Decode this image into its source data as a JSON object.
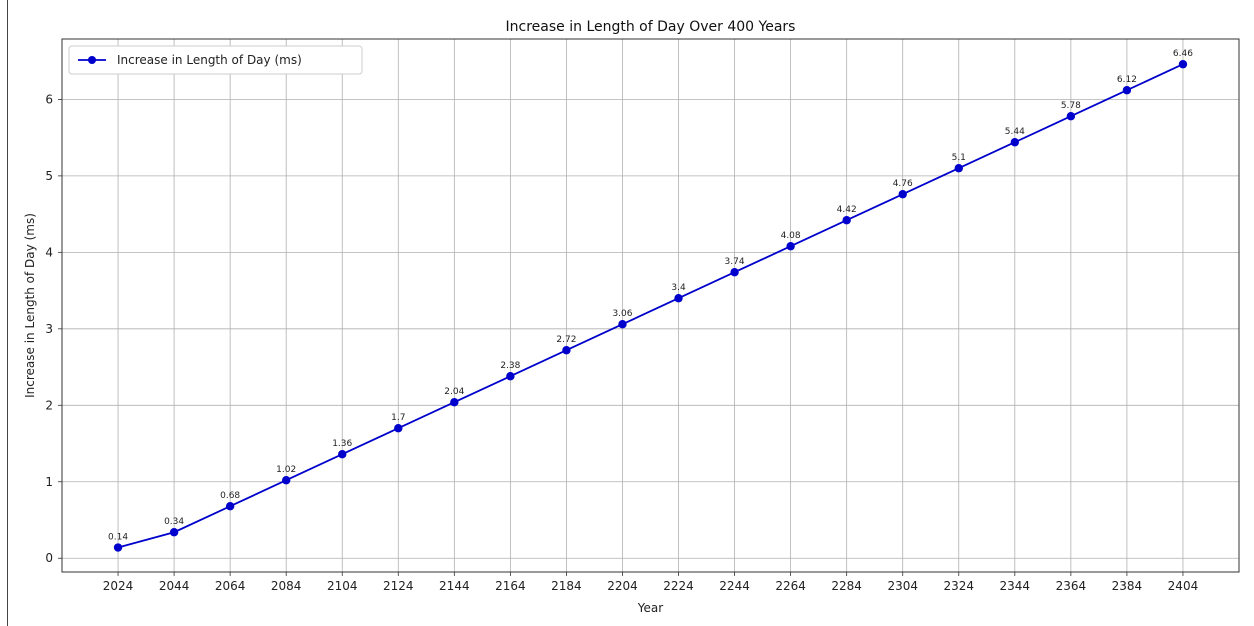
{
  "chart_data": {
    "type": "line",
    "title": "Increase in Length of Day Over 400 Years",
    "xlabel": "Year",
    "ylabel": "Increase in Length of Day (ms)",
    "x": [
      2024,
      2044,
      2064,
      2084,
      2104,
      2124,
      2144,
      2164,
      2184,
      2204,
      2224,
      2244,
      2264,
      2284,
      2304,
      2324,
      2344,
      2364,
      2384,
      2404
    ],
    "xticks": [
      "2024",
      "2044",
      "2064",
      "2084",
      "2104",
      "2124",
      "2144",
      "2164",
      "2184",
      "2204",
      "2224",
      "2244",
      "2264",
      "2284",
      "2304",
      "2324",
      "2344",
      "2364",
      "2384",
      "2404"
    ],
    "yticks": [
      "0",
      "1",
      "2",
      "3",
      "4",
      "5",
      "6"
    ],
    "xlim": [
      2004,
      2424
    ],
    "ylim": [
      -0.18,
      6.79
    ],
    "series": [
      {
        "name": "Increase in Length of Day (ms)",
        "values": [
          0.14,
          0.34,
          0.68,
          1.02,
          1.36,
          1.7,
          2.04,
          2.38,
          2.72,
          3.06,
          3.4,
          3.74,
          4.08,
          4.42,
          4.76,
          5.1,
          5.44,
          5.78,
          6.12,
          6.46
        ],
        "labels": [
          "0.14",
          "0.34",
          "0.68",
          "1.02",
          "1.36",
          "1.7",
          "2.04",
          "2.38",
          "2.72",
          "3.06",
          "3.4",
          "3.74",
          "4.08",
          "4.42",
          "4.76",
          "5.1",
          "5.44",
          "5.78",
          "6.12",
          "6.46"
        ],
        "color": "#0000cc"
      }
    ],
    "grid": true,
    "legend_position": "top-left"
  }
}
